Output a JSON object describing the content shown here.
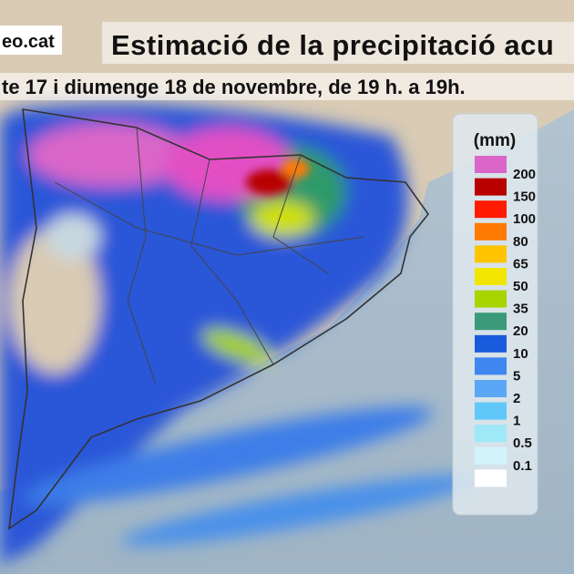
{
  "header": {
    "site": "eo.cat",
    "title": "Estimació de la precipitació acu",
    "subtitle": "te 17 i diumenge 18 de novembre, de 19 h. a 19h."
  },
  "legend": {
    "title": "(mm)",
    "items": [
      {
        "label": 200,
        "color": "#d966c8"
      },
      {
        "label": 150,
        "color": "#b80000"
      },
      {
        "label": 100,
        "color": "#ff1a00"
      },
      {
        "label": 80,
        "color": "#ff7a00"
      },
      {
        "label": 65,
        "color": "#ffc400"
      },
      {
        "label": 50,
        "color": "#f2e600"
      },
      {
        "label": 35,
        "color": "#a8d400"
      },
      {
        "label": 20,
        "color": "#3a9a7a"
      },
      {
        "label": 10,
        "color": "#1a5adc"
      },
      {
        "label": 5,
        "color": "#3f86f0"
      },
      {
        "label": 2,
        "color": "#5aa8f5"
      },
      {
        "label": 1,
        "color": "#60c8f8"
      },
      {
        "label": 0.5,
        "color": "#9ee8f8"
      },
      {
        "label": 0.1,
        "color": "#d0f4fa"
      },
      {
        "label": "",
        "color": "#ffffff"
      }
    ]
  }
}
